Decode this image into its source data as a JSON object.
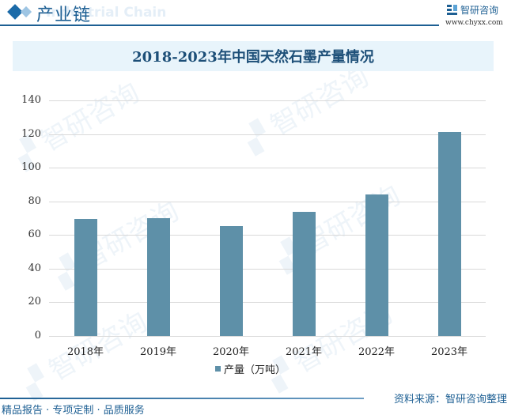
{
  "header": {
    "section_title": "产业链",
    "section_subtitle_bg": "Industrial Chain",
    "brand_name": "智研咨询",
    "brand_url": "www.chyxx.com"
  },
  "chart_data": {
    "type": "bar",
    "title": "2018-2023年中国天然石墨产量情况",
    "categories": [
      "2018年",
      "2019年",
      "2020年",
      "2021年",
      "2022年",
      "2023年"
    ],
    "series": [
      {
        "name": "产量（万吨）",
        "values": [
          69.5,
          70,
          65.3,
          73.8,
          84,
          121
        ],
        "color": "#5e90a8"
      }
    ],
    "xlabel": "",
    "ylabel": "",
    "ylim": [
      0,
      140
    ],
    "yticks": [
      0,
      20,
      40,
      60,
      80,
      100,
      120,
      140
    ],
    "grid": true,
    "legend_position": "bottom"
  },
  "legend": {
    "label": "产量（万吨）"
  },
  "footer": {
    "left": "精品报告 · 专项定制 · 品质服务",
    "right": "资料来源：智研咨询整理"
  },
  "colors": {
    "brand": "#1d5f93",
    "bar": "#5e90a8",
    "title_bg": "#e8f4fb"
  }
}
